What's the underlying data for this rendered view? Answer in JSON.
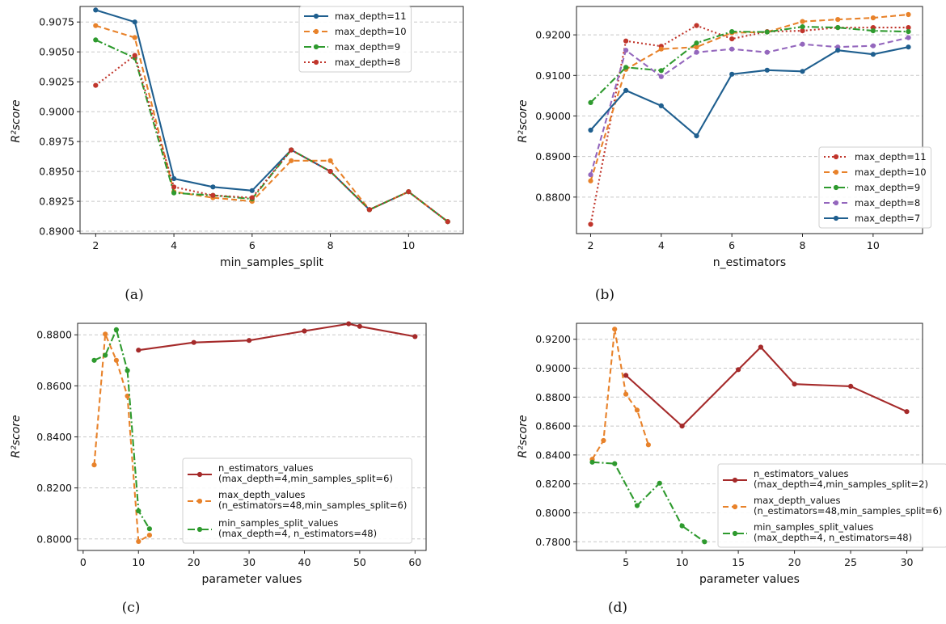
{
  "colors": {
    "blue": "#1f5f8f",
    "orange": "#e8822a",
    "green": "#2e9a2e",
    "red": "#c0352b",
    "purple": "#9467bd",
    "maroon": "#a52a2a",
    "grid": "#c8c8c8"
  },
  "chart_data": [
    {
      "id": "a",
      "type": "line",
      "caption": "(a)",
      "xlabel": "min_samples_split",
      "ylabel": "R²score",
      "xlim": [
        1.6,
        11.4
      ],
      "ylim": [
        0.8898,
        0.9088
      ],
      "xticks": [
        2,
        4,
        6,
        8,
        10
      ],
      "xtick_labels": [
        "2",
        "4",
        "6",
        "8",
        "10"
      ],
      "yticks": [
        0.89,
        0.8925,
        0.895,
        0.8975,
        0.9,
        0.9025,
        0.905,
        0.9075
      ],
      "ytick_labels": [
        "0.8900",
        "0.8925",
        "0.8950",
        "0.8975",
        "0.9000",
        "0.9025",
        "0.9050",
        "0.9075"
      ],
      "legend_position": "top-right",
      "x": [
        2,
        3,
        4,
        5,
        6,
        7,
        8,
        9,
        10,
        11
      ],
      "series": [
        {
          "name": "max_depth=11",
          "color": "blue",
          "style": "solid",
          "values": [
            0.9085,
            0.9075,
            0.8944,
            0.8937,
            0.8934,
            0.8968,
            0.895,
            0.8918,
            0.8933,
            0.8908
          ]
        },
        {
          "name": "max_depth=10",
          "color": "orange",
          "style": "dashed",
          "values": [
            0.9072,
            0.9062,
            0.8933,
            0.8928,
            0.8925,
            0.8959,
            0.8959,
            0.8918,
            0.8933,
            0.8908
          ]
        },
        {
          "name": "max_depth=9",
          "color": "green",
          "style": "dashdot",
          "values": [
            0.906,
            0.9045,
            0.8932,
            0.893,
            0.8927,
            0.8968,
            0.895,
            0.8918,
            0.8933,
            0.8908
          ]
        },
        {
          "name": "max_depth=8",
          "color": "red",
          "style": "dotted",
          "values": [
            0.9022,
            0.9047,
            0.8937,
            0.893,
            0.8928,
            0.8968,
            0.895,
            0.8918,
            0.8933,
            0.8908
          ]
        }
      ]
    },
    {
      "id": "b",
      "type": "line",
      "caption": "(b)",
      "xlabel": "n_estimators",
      "ylabel": "R²score",
      "xlim": [
        1.6,
        11.4
      ],
      "ylim": [
        0.871,
        0.927
      ],
      "xticks": [
        2,
        4,
        6,
        8,
        10
      ],
      "xtick_labels": [
        "2",
        "4",
        "6",
        "8",
        "10"
      ],
      "yticks": [
        0.88,
        0.89,
        0.9,
        0.91,
        0.92
      ],
      "ytick_labels": [
        "0.8800",
        "0.8900",
        "0.9000",
        "0.9100",
        "0.9200"
      ],
      "legend_position": "lower-right",
      "x": [
        2,
        3,
        4,
        5,
        6,
        7,
        8,
        9,
        10,
        11
      ],
      "series": [
        {
          "name": "max_depth=11",
          "color": "red",
          "style": "dotted",
          "values": [
            0.8733,
            0.9185,
            0.9172,
            0.9223,
            0.919,
            0.9208,
            0.921,
            0.9218,
            0.9218,
            0.9218
          ]
        },
        {
          "name": "max_depth=10",
          "color": "orange",
          "style": "dashed",
          "values": [
            0.884,
            0.9115,
            0.9165,
            0.917,
            0.9205,
            0.9207,
            0.9233,
            0.9238,
            0.9242,
            0.925
          ]
        },
        {
          "name": "max_depth=9",
          "color": "green",
          "style": "dashdot",
          "values": [
            0.9033,
            0.912,
            0.9112,
            0.918,
            0.9208,
            0.9207,
            0.922,
            0.9218,
            0.921,
            0.9208
          ]
        },
        {
          "name": "max_depth=8",
          "color": "purple",
          "style": "dashed",
          "values": [
            0.8855,
            0.9162,
            0.9097,
            0.9157,
            0.9165,
            0.9157,
            0.9177,
            0.917,
            0.9173,
            0.9193
          ]
        },
        {
          "name": "max_depth=7",
          "color": "blue",
          "style": "solid",
          "values": [
            0.8965,
            0.9063,
            0.9025,
            0.8951,
            0.9103,
            0.9113,
            0.911,
            0.9162,
            0.9152,
            0.917
          ]
        }
      ]
    },
    {
      "id": "c",
      "type": "line",
      "caption": "(c)",
      "xlabel": "parameter values",
      "ylabel": "R²score",
      "xlim": [
        -1,
        62
      ],
      "ylim": [
        0.7955,
        0.8845
      ],
      "xticks": [
        0,
        10,
        20,
        30,
        40,
        50,
        60
      ],
      "xtick_labels": [
        "0",
        "10",
        "20",
        "30",
        "40",
        "50",
        "60"
      ],
      "yticks": [
        0.8,
        0.82,
        0.84,
        0.86,
        0.88
      ],
      "ytick_labels": [
        "0.8000",
        "0.8200",
        "0.8400",
        "0.8600",
        "0.8800"
      ],
      "legend_position": "lower-right",
      "series": [
        {
          "name": "n_estimators_values",
          "note": "(max_depth=4,min_samples_split=6)",
          "color": "maroon",
          "style": "solid",
          "x": [
            10,
            20,
            30,
            40,
            48,
            50,
            60
          ],
          "values": [
            0.874,
            0.877,
            0.8778,
            0.8815,
            0.8843,
            0.8833,
            0.8793
          ]
        },
        {
          "name": "max_depth_values",
          "note": "(n_estimators=48,min_samples_split=6)",
          "color": "orange",
          "style": "dashed",
          "x": [
            2,
            4,
            6,
            8,
            10,
            12
          ],
          "values": [
            0.829,
            0.8803,
            0.87,
            0.856,
            0.799,
            0.8015
          ]
        },
        {
          "name": "min_samples_split_values",
          "note": "(max_depth=4, n_estimators=48)",
          "color": "green",
          "style": "dashdot",
          "x": [
            2,
            4,
            6,
            8,
            10,
            12
          ],
          "values": [
            0.87,
            0.872,
            0.882,
            0.866,
            0.811,
            0.804
          ]
        }
      ]
    },
    {
      "id": "d",
      "type": "line",
      "caption": "(d)",
      "xlabel": "parameter values",
      "ylabel": "R²score",
      "xlim": [
        0.6,
        31.4
      ],
      "ylim": [
        0.774,
        0.931
      ],
      "xticks": [
        5,
        10,
        15,
        20,
        25,
        30
      ],
      "xtick_labels": [
        "5",
        "10",
        "15",
        "20",
        "25",
        "30"
      ],
      "yticks": [
        0.78,
        0.8,
        0.82,
        0.84,
        0.86,
        0.88,
        0.9,
        0.92
      ],
      "ytick_labels": [
        "0.7800",
        "0.8000",
        "0.8200",
        "0.8400",
        "0.8600",
        "0.8800",
        "0.9000",
        "0.9200"
      ],
      "legend_position": "lower-right",
      "series": [
        {
          "name": "n_estimators_values",
          "note": "(max_depth=4,min_samples_split=2)",
          "color": "maroon",
          "style": "solid",
          "x": [
            5,
            10,
            15,
            17,
            20,
            25,
            30
          ],
          "values": [
            0.895,
            0.86,
            0.899,
            0.9145,
            0.889,
            0.8875,
            0.87
          ]
        },
        {
          "name": "max_depth_values",
          "note": "(n_estimators=48,min_samples_split=6)",
          "color": "orange",
          "style": "dashed",
          "x": [
            2,
            3,
            4,
            5,
            6,
            7
          ],
          "values": [
            0.837,
            0.85,
            0.927,
            0.882,
            0.871,
            0.847
          ]
        },
        {
          "name": "min_samples_split_values",
          "note": "(max_depth=4, n_estimators=48)",
          "color": "green",
          "style": "dashdot",
          "x": [
            2,
            4,
            6,
            8,
            10,
            12
          ],
          "values": [
            0.835,
            0.834,
            0.805,
            0.8205,
            0.791,
            0.78
          ]
        }
      ]
    }
  ]
}
